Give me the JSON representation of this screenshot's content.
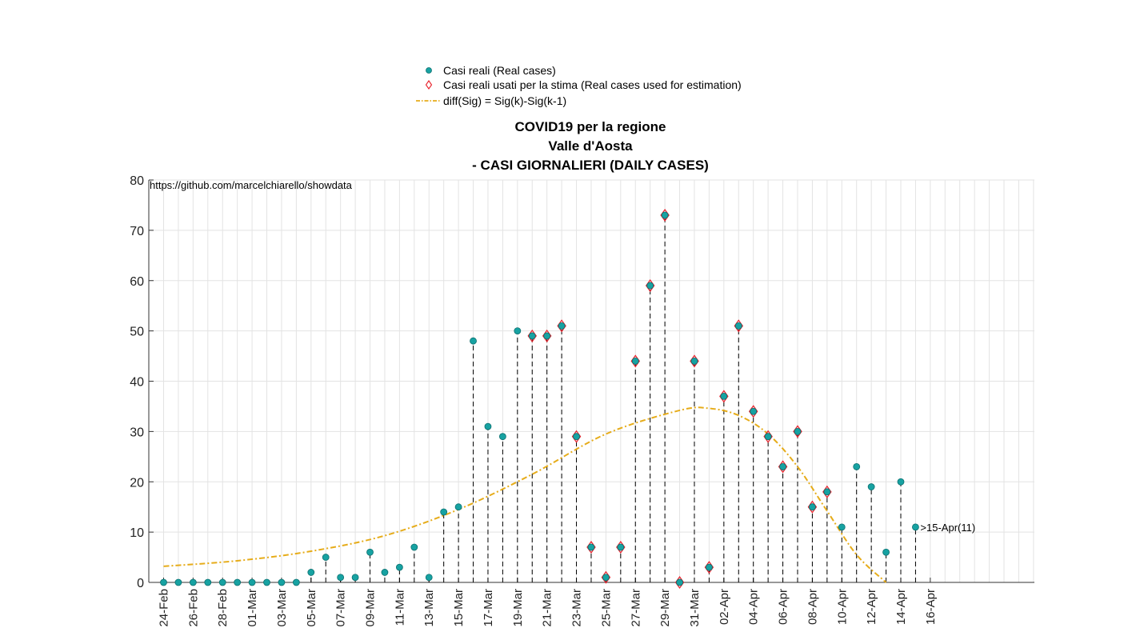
{
  "chart_data": {
    "type": "scatter",
    "title_lines": [
      "COVID19 per la regione",
      "Valle d'Aosta",
      "- CASI GIORNALIERI (DAILY CASES)"
    ],
    "annotation": "https://github.com/marcelchiarello/showdata",
    "end_label": ">15-Apr(11)",
    "ylim": [
      0,
      80
    ],
    "yticks": [
      0,
      10,
      20,
      30,
      40,
      50,
      60,
      70,
      80
    ],
    "xlim": [
      0,
      54
    ],
    "grid": true,
    "legend": {
      "placement": "top-center",
      "entries": [
        {
          "label": "Casi reali (Real cases)",
          "marker": "dot"
        },
        {
          "label": "Casi reali usati per la stima (Real cases used for estimation)",
          "marker": "diamond"
        },
        {
          "label": "diff(Sig) = Sig(k)-Sig(k-1)",
          "marker": "dashdot-line"
        }
      ]
    },
    "colors": {
      "real": "#17a2a2",
      "estimation": "#e8202a",
      "fit": "#e6ac1a"
    },
    "xtick_labels": [
      "24-Feb",
      "26-Feb",
      "28-Feb",
      "01-Mar",
      "03-Mar",
      "05-Mar",
      "07-Mar",
      "09-Mar",
      "11-Mar",
      "13-Mar",
      "15-Mar",
      "17-Mar",
      "19-Mar",
      "21-Mar",
      "23-Mar",
      "25-Mar",
      "27-Mar",
      "29-Mar",
      "31-Mar",
      "02-Apr",
      "04-Apr",
      "06-Apr",
      "08-Apr",
      "10-Apr",
      "12-Apr",
      "14-Apr",
      "16-Apr"
    ],
    "dates": [
      "24-Feb",
      "25-Feb",
      "26-Feb",
      "27-Feb",
      "28-Feb",
      "29-Feb",
      "01-Mar",
      "02-Mar",
      "03-Mar",
      "04-Mar",
      "05-Mar",
      "06-Mar",
      "07-Mar",
      "08-Mar",
      "09-Mar",
      "10-Mar",
      "11-Mar",
      "12-Mar",
      "13-Mar",
      "14-Mar",
      "15-Mar",
      "16-Mar",
      "17-Mar",
      "18-Mar",
      "19-Mar",
      "20-Mar",
      "21-Mar",
      "22-Mar",
      "23-Mar",
      "24-Mar",
      "25-Mar",
      "26-Mar",
      "27-Mar",
      "28-Mar",
      "29-Mar",
      "30-Mar",
      "31-Mar",
      "01-Apr",
      "02-Apr",
      "03-Apr",
      "04-Apr",
      "05-Apr",
      "06-Apr",
      "07-Apr",
      "08-Apr",
      "09-Apr",
      "10-Apr",
      "11-Apr",
      "12-Apr",
      "13-Apr",
      "14-Apr",
      "15-Apr"
    ],
    "real_cases": [
      0,
      0,
      0,
      0,
      0,
      0,
      0,
      0,
      0,
      0,
      2,
      5,
      1,
      1,
      6,
      2,
      3,
      7,
      1,
      14,
      15,
      48,
      31,
      29,
      50,
      49,
      49,
      51,
      29,
      7,
      1,
      7,
      44,
      59,
      73,
      0,
      44,
      3,
      37,
      51,
      34,
      29,
      23,
      30,
      15,
      18,
      11,
      23,
      19,
      6,
      20,
      11
    ],
    "estimation_dates": [
      "20-Mar",
      "21-Mar",
      "22-Mar",
      "23-Mar",
      "24-Mar",
      "25-Mar",
      "26-Mar",
      "27-Mar",
      "28-Mar",
      "29-Mar",
      "30-Mar",
      "31-Mar",
      "01-Apr",
      "02-Apr",
      "03-Apr",
      "04-Apr",
      "05-Apr",
      "06-Apr",
      "07-Apr",
      "08-Apr",
      "09-Apr"
    ],
    "estimation_cases": [
      49,
      49,
      51,
      29,
      7,
      1,
      7,
      44,
      59,
      73,
      0,
      44,
      3,
      37,
      51,
      34,
      29,
      23,
      30,
      15,
      18
    ],
    "fit_curve": {
      "x": [
        "24-Feb",
        "29-Feb",
        "05-Mar",
        "10-Mar",
        "15-Mar",
        "20-Mar",
        "25-Mar",
        "30-Mar",
        "01-Apr",
        "03-Apr",
        "05-Apr",
        "07-Apr",
        "09-Apr",
        "11-Apr",
        "13-Apr"
      ],
      "y": [
        3.2,
        4.3,
        6.2,
        9.3,
        14.5,
        21.5,
        29.5,
        34.2,
        34.6,
        33.2,
        29.5,
        23.0,
        14.2,
        5.5,
        0
      ]
    }
  }
}
